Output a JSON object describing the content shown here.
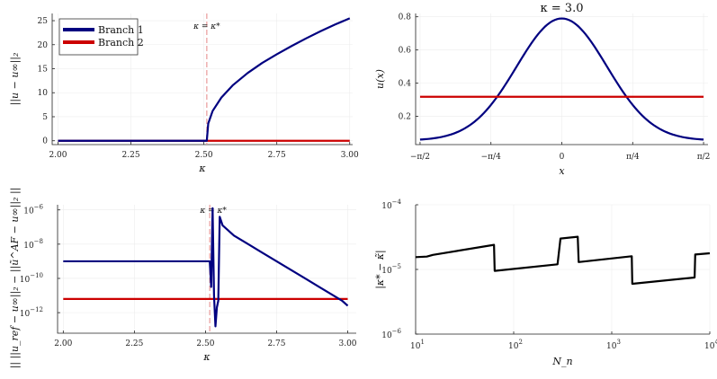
{
  "chart_data": [
    {
      "id": "p1",
      "type": "line",
      "title": "",
      "xlabel": "κ",
      "ylabel": "||u − u∞||₂",
      "xlim": [
        1.98,
        3.01
      ],
      "ylim": [
        -0.8,
        26.5
      ],
      "xticks": [
        2.0,
        2.25,
        2.5,
        2.75,
        3.0
      ],
      "xtick_labels": [
        "2.00",
        "2.25",
        "2.50",
        "2.75",
        "3.00"
      ],
      "yticks": [
        0,
        5,
        10,
        15,
        20,
        25
      ],
      "ytick_labels": [
        "0",
        "5",
        "10",
        "15",
        "20",
        "25"
      ],
      "grid": true,
      "legend": "top-left",
      "vline": {
        "x": 2.51,
        "label": "κ = κ*",
        "color": "#e99a9a"
      },
      "series": [
        {
          "name": "Branch 1",
          "color": "#000080",
          "x": [
            2.0,
            2.5,
            2.51,
            2.515,
            2.53,
            2.56,
            2.6,
            2.65,
            2.7,
            2.75,
            2.8,
            2.85,
            2.9,
            2.95,
            3.0
          ],
          "y": [
            0,
            0,
            0,
            3.6,
            6.2,
            9.0,
            11.6,
            14.1,
            16.2,
            18.0,
            19.7,
            21.3,
            22.8,
            24.2,
            25.5
          ]
        },
        {
          "name": "Branch 2",
          "color": "#cc0000",
          "x": [
            2.0,
            3.0
          ],
          "y": [
            0,
            0
          ]
        }
      ]
    },
    {
      "id": "p2",
      "type": "line",
      "title": "κ = 3.0",
      "xlabel": "x",
      "ylabel": "u(x)",
      "xlim": [
        -1.62,
        1.62
      ],
      "ylim": [
        0.03,
        0.82
      ],
      "xticks": [
        -1.5708,
        -0.7854,
        0,
        0.7854,
        1.5708
      ],
      "xtick_labels": [
        "−π/2",
        "−π/4",
        "0",
        "π/4",
        "π/2"
      ],
      "yticks": [
        0.2,
        0.4,
        0.6,
        0.8
      ],
      "ytick_labels": [
        "0.2",
        "0.4",
        "0.6",
        "0.8"
      ],
      "grid": true,
      "series": [
        {
          "name": "",
          "color": "#000080",
          "curve": "bump",
          "peak": 0.79,
          "base": 0.055,
          "width": 0.5
        },
        {
          "name": "",
          "color": "#cc0000",
          "x": [
            -1.5708,
            1.5708
          ],
          "y": [
            0.318,
            0.318
          ]
        }
      ]
    },
    {
      "id": "p3",
      "type": "line",
      "title": "",
      "xlabel": "κ",
      "ylabel": "|| ||u_ref − u∞||₂ − ||ũ^AF − u∞||₂ ||",
      "xlim": [
        1.98,
        3.03
      ],
      "ylim_log10": [
        -13.2,
        -5.7
      ],
      "xticks": [
        2.0,
        2.25,
        2.5,
        2.75,
        3.0
      ],
      "xtick_labels": [
        "2.00",
        "2.25",
        "2.50",
        "2.75",
        "3.00"
      ],
      "yticks_log10": [
        -12,
        -10,
        -8,
        -6
      ],
      "ytick_labels": [
        "10",
        "10",
        "10",
        "10"
      ],
      "ytick_exponents": [
        "−12",
        "−10",
        "−8",
        "−6"
      ],
      "grid": true,
      "vline": {
        "x": 2.515,
        "label": "κ = κ*",
        "color": "#e99a9a"
      },
      "series": [
        {
          "name": "",
          "color": "#000080",
          "x": [
            2.0,
            2.5,
            2.515,
            2.52,
            2.525,
            2.53,
            2.535,
            2.54,
            2.545,
            2.55,
            2.56,
            2.6,
            2.65,
            2.7,
            2.75,
            2.8,
            2.85,
            2.9,
            2.95,
            2.98,
            3.0
          ],
          "log10y": [
            -9.0,
            -9.0,
            -9.0,
            -10.5,
            -5.9,
            -11.0,
            -12.8,
            -11.7,
            -11.3,
            -6.4,
            -6.9,
            -7.5,
            -8.0,
            -8.5,
            -9.0,
            -9.5,
            -10.0,
            -10.5,
            -11.0,
            -11.3,
            -11.6
          ]
        },
        {
          "name": "",
          "color": "#cc0000",
          "x": [
            2.0,
            3.0
          ],
          "log10y": [
            -11.2,
            -11.2
          ]
        }
      ]
    },
    {
      "id": "p4",
      "type": "line",
      "title": "",
      "xlabel": "N_n",
      "ylabel": "|κ* − κ̃|",
      "xlim_log10": [
        1.0,
        4.0
      ],
      "ylim_log10": [
        -6.0,
        -4.0
      ],
      "xticks_log10": [
        1,
        2,
        3,
        4
      ],
      "xtick_labels": [
        "10",
        "10",
        "10",
        "10"
      ],
      "xtick_exponents": [
        "1",
        "2",
        "3",
        "4"
      ],
      "yticks_log10": [
        -6,
        -5,
        -4
      ],
      "ytick_labels": [
        "10",
        "10",
        "10"
      ],
      "ytick_exponents": [
        "−6",
        "−5",
        "−4"
      ],
      "grid": true,
      "series": [
        {
          "name": "",
          "color": "#000000",
          "x": [
            10,
            13,
            15,
            63,
            64,
            280,
            300,
            450,
            460,
            1600,
            1620,
            7000,
            7100,
            10000
          ],
          "y": [
            1.55e-05,
            1.58e-05,
            1.68e-05,
            2.4e-05,
            9.5e-06,
            1.2e-05,
            3e-05,
            3.2e-05,
            1.3e-05,
            1.6e-05,
            6e-06,
            7.5e-06,
            1.7e-05,
            1.78e-05
          ]
        }
      ]
    }
  ]
}
